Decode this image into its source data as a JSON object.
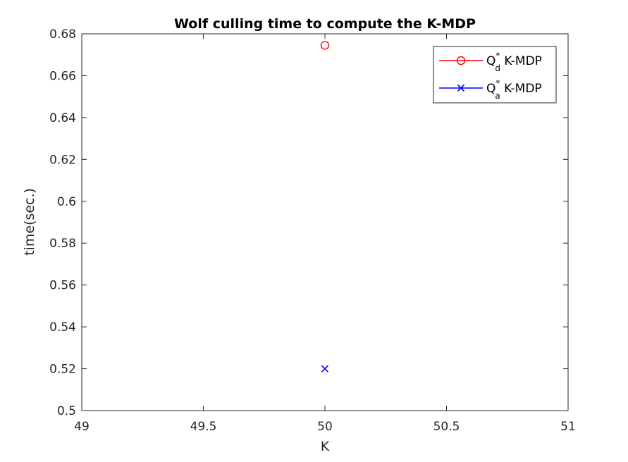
{
  "chart_data": {
    "type": "scatter",
    "title": "Wolf culling time to compute the K-MDP",
    "xlabel": "K",
    "ylabel": "time(sec.)",
    "xlim": [
      49,
      51
    ],
    "ylim": [
      0.5,
      0.68
    ],
    "xticks": [
      49,
      49.5,
      50,
      50.5,
      51
    ],
    "xtick_labels": [
      "49",
      "49.5",
      "50",
      "50.5",
      "51"
    ],
    "yticks": [
      0.5,
      0.52,
      0.54,
      0.56,
      0.58,
      0.6,
      0.62,
      0.64,
      0.66,
      0.68
    ],
    "ytick_labels": [
      "0.5",
      "0.52",
      "0.54",
      "0.56",
      "0.58",
      "0.6",
      "0.62",
      "0.64",
      "0.66",
      "0.68"
    ],
    "grid": false,
    "legend_position": "top-right",
    "series": [
      {
        "name_base": "Q",
        "name_sup": "*",
        "name_sub": "d",
        "name_suffix": " K-MDP",
        "color": "#ff0000",
        "marker": "circle",
        "x": [
          50
        ],
        "y": [
          0.6745
        ]
      },
      {
        "name_base": "Q",
        "name_sup": "*",
        "name_sub": "a",
        "name_suffix": " K-MDP",
        "color": "#0000ff",
        "marker": "x",
        "x": [
          50
        ],
        "y": [
          0.52
        ]
      }
    ]
  }
}
